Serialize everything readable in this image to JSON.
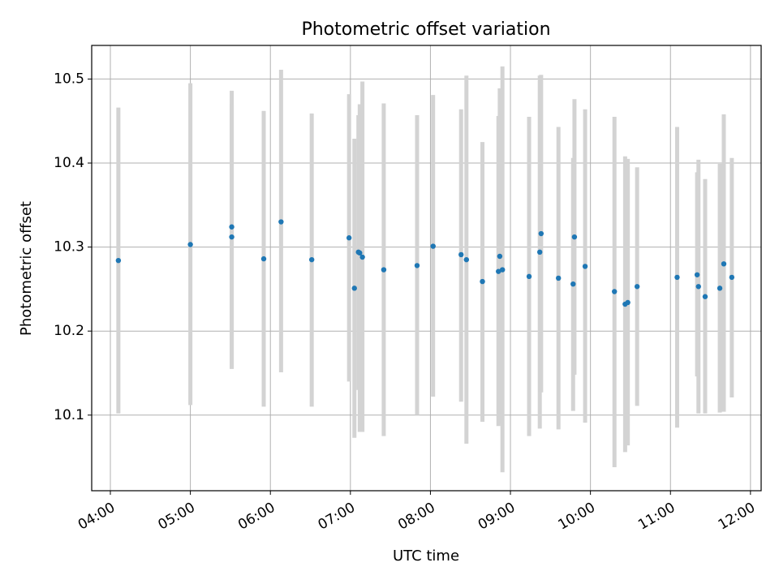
{
  "chart_data": {
    "type": "scatter",
    "title": "Photometric offset variation",
    "xlabel": "UTC time",
    "ylabel": "Photometric offset",
    "x_ticks": [
      "04:00",
      "05:00",
      "06:00",
      "07:00",
      "08:00",
      "09:00",
      "10:00",
      "11:00",
      "12:00"
    ],
    "y_ticks": [
      "10.1",
      "10.2",
      "10.3",
      "10.4",
      "10.5"
    ],
    "xlim": [
      "03:46",
      "12:08"
    ],
    "ylim": [
      10.01,
      10.54
    ],
    "grid": true,
    "colors": {
      "points": "#1f77b4",
      "error_bars": "#d3d3d3",
      "grid": "#b0b0b0"
    },
    "points": [
      {
        "x": "04:06",
        "y": 10.284,
        "ylo": 10.102,
        "yhi": 10.466
      },
      {
        "x": "05:00",
        "y": 10.303,
        "ylo": 10.112,
        "yhi": 10.495
      },
      {
        "x": "05:31",
        "y": 10.324,
        "ylo": 10.155,
        "yhi": 10.486
      },
      {
        "x": "05:31",
        "y": 10.312,
        "ylo": 10.155,
        "yhi": 10.47
      },
      {
        "x": "05:55",
        "y": 10.286,
        "ylo": 10.11,
        "yhi": 10.462
      },
      {
        "x": "06:08",
        "y": 10.33,
        "ylo": 10.151,
        "yhi": 10.511
      },
      {
        "x": "06:31",
        "y": 10.285,
        "ylo": 10.11,
        "yhi": 10.459
      },
      {
        "x": "06:59",
        "y": 10.311,
        "ylo": 10.14,
        "yhi": 10.482
      },
      {
        "x": "07:03",
        "y": 10.251,
        "ylo": 10.073,
        "yhi": 10.429
      },
      {
        "x": "07:06",
        "y": 10.294,
        "ylo": 10.13,
        "yhi": 10.457
      },
      {
        "x": "07:07",
        "y": 10.293,
        "ylo": 10.08,
        "yhi": 10.47
      },
      {
        "x": "07:09",
        "y": 10.288,
        "ylo": 10.08,
        "yhi": 10.497
      },
      {
        "x": "07:25",
        "y": 10.273,
        "ylo": 10.075,
        "yhi": 10.471
      },
      {
        "x": "07:50",
        "y": 10.278,
        "ylo": 10.1,
        "yhi": 10.457
      },
      {
        "x": "08:02",
        "y": 10.301,
        "ylo": 10.122,
        "yhi": 10.481
      },
      {
        "x": "08:23",
        "y": 10.291,
        "ylo": 10.116,
        "yhi": 10.464
      },
      {
        "x": "08:27",
        "y": 10.285,
        "ylo": 10.066,
        "yhi": 10.504
      },
      {
        "x": "08:39",
        "y": 10.259,
        "ylo": 10.092,
        "yhi": 10.425
      },
      {
        "x": "08:51",
        "y": 10.271,
        "ylo": 10.087,
        "yhi": 10.456
      },
      {
        "x": "08:52",
        "y": 10.289,
        "ylo": 10.09,
        "yhi": 10.489
      },
      {
        "x": "08:54",
        "y": 10.273,
        "ylo": 10.032,
        "yhi": 10.515
      },
      {
        "x": "09:14",
        "y": 10.265,
        "ylo": 10.075,
        "yhi": 10.455
      },
      {
        "x": "09:22",
        "y": 10.294,
        "ylo": 10.084,
        "yhi": 10.504
      },
      {
        "x": "09:23",
        "y": 10.316,
        "ylo": 10.127,
        "yhi": 10.505
      },
      {
        "x": "09:36",
        "y": 10.263,
        "ylo": 10.083,
        "yhi": 10.443
      },
      {
        "x": "09:47",
        "y": 10.256,
        "ylo": 10.105,
        "yhi": 10.406
      },
      {
        "x": "09:48",
        "y": 10.312,
        "ylo": 10.148,
        "yhi": 10.476
      },
      {
        "x": "09:56",
        "y": 10.277,
        "ylo": 10.091,
        "yhi": 10.464
      },
      {
        "x": "10:18",
        "y": 10.247,
        "ylo": 10.038,
        "yhi": 10.455
      },
      {
        "x": "10:26",
        "y": 10.232,
        "ylo": 10.056,
        "yhi": 10.408
      },
      {
        "x": "10:28",
        "y": 10.234,
        "ylo": 10.064,
        "yhi": 10.405
      },
      {
        "x": "10:35",
        "y": 10.253,
        "ylo": 10.111,
        "yhi": 10.395
      },
      {
        "x": "11:05",
        "y": 10.264,
        "ylo": 10.085,
        "yhi": 10.443
      },
      {
        "x": "11:20",
        "y": 10.267,
        "ylo": 10.146,
        "yhi": 10.389
      },
      {
        "x": "11:21",
        "y": 10.253,
        "ylo": 10.102,
        "yhi": 10.404
      },
      {
        "x": "11:26",
        "y": 10.241,
        "ylo": 10.102,
        "yhi": 10.381
      },
      {
        "x": "11:37",
        "y": 10.251,
        "ylo": 10.103,
        "yhi": 10.399
      },
      {
        "x": "11:40",
        "y": 10.28,
        "ylo": 10.104,
        "yhi": 10.458
      },
      {
        "x": "11:46",
        "y": 10.264,
        "ylo": 10.121,
        "yhi": 10.406
      }
    ]
  }
}
